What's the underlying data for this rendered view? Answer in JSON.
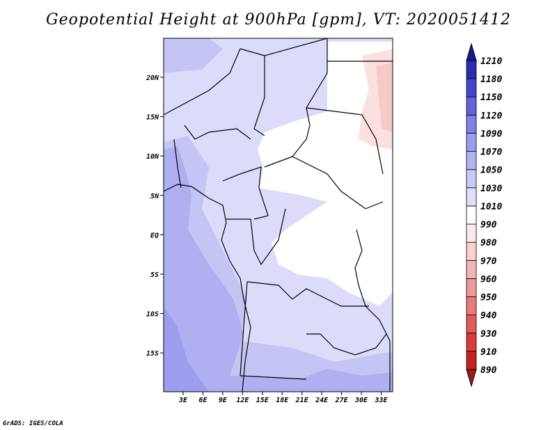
{
  "title": "Geopotential Height at 900hPa [gpm], VT: 2020051412",
  "credit": "GrADS: IGES/COLA",
  "chart_data": {
    "type": "heatmap",
    "title": "Geopotential Height at 900hPa [gpm], VT: 2020051412",
    "x_ticks": [
      "3E",
      "6E",
      "9E",
      "12E",
      "15E",
      "18E",
      "21E",
      "24E",
      "27E",
      "30E",
      "33E"
    ],
    "y_ticks": [
      "20N",
      "15N",
      "10N",
      "5N",
      "EQ",
      "5S",
      "10S",
      "15S"
    ],
    "colorbar": {
      "levels": [
        890,
        910,
        930,
        940,
        950,
        960,
        970,
        980,
        990,
        1010,
        1030,
        1050,
        1070,
        1090,
        1120,
        1150,
        1180,
        1210
      ],
      "colors": [
        "#9e1a1a",
        "#c22222",
        "#da3a3a",
        "#e25a5a",
        "#e87b7b",
        "#ee9a9a",
        "#f3b6b6",
        "#f8d2d2",
        "#fce9e9",
        "#ffffff",
        "#e0e0fb",
        "#c8c8f7",
        "#b2b2f3",
        "#9c9cef",
        "#8080e6",
        "#6464da",
        "#4646c8",
        "#2c2cb0",
        "#1a1a90"
      ]
    },
    "field_regions": [
      {
        "level": 1010,
        "color": "#ffffff",
        "region": "central (Chad, Sudan, CAR, DRC interior)"
      },
      {
        "level": 1030,
        "color": "#dcdcfa",
        "region": "north, central, east"
      },
      {
        "level": 1050,
        "color": "#c4c4f5",
        "region": "Gulf of Guinea, south"
      },
      {
        "level": 1070,
        "color": "#afaff2",
        "region": "south-west Atlantic coast"
      },
      {
        "level": 1090,
        "color": "#9e9ef0",
        "region": "far south-west"
      },
      {
        "level": 990,
        "color": "#fbe0e0",
        "region": "north-east Sudan"
      },
      {
        "level": 980,
        "color": "#f7caca",
        "region": "north-east Sudan core"
      }
    ]
  }
}
